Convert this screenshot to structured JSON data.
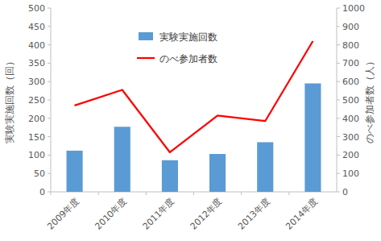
{
  "chart_data": {
    "type": "bar",
    "categories": [
      "2009年度",
      "2010年度",
      "2011年度",
      "2012年度",
      "2013年度",
      "2014年度"
    ],
    "series": [
      {
        "name": "実験実施回数",
        "type": "bar",
        "color": "#5b9bd5",
        "values": [
          112,
          177,
          86,
          103,
          135,
          295
        ]
      },
      {
        "name": "のべ参加者数",
        "type": "line",
        "axis": "y2",
        "color": "#ff0000",
        "values": [
          470,
          555,
          215,
          415,
          385,
          820
        ]
      }
    ],
    "y_label": "実験実施回数（回）",
    "y2_label": "のべ参加者数（人）",
    "ylim": [
      0,
      500
    ],
    "yticks": [
      0,
      50,
      100,
      150,
      200,
      250,
      300,
      350,
      400,
      450,
      500
    ],
    "y2lim": [
      0,
      1000
    ],
    "y2ticks": [
      0,
      100,
      200,
      300,
      400,
      500,
      600,
      700,
      800,
      900,
      1000
    ],
    "grid": false,
    "legend": "top"
  }
}
